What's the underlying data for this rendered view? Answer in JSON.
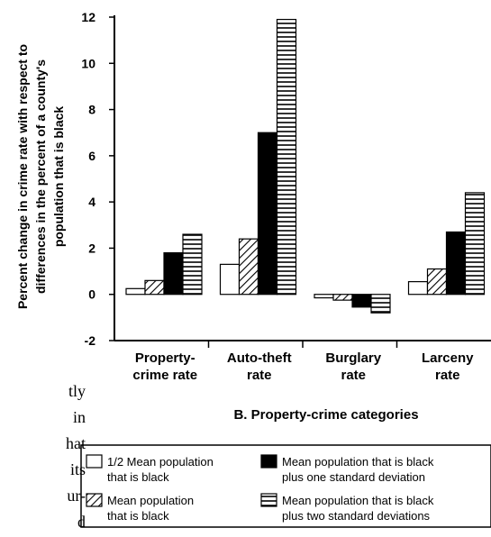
{
  "chart_data": {
    "type": "bar",
    "ylabel_lines": [
      "Percent change in crime rate with respect to",
      "differences in the percent of a county's",
      "population that is black"
    ],
    "xlabel": "B. Property-crime categories",
    "categories": [
      [
        "Property-",
        "crime rate"
      ],
      [
        "Auto-theft",
        "rate"
      ],
      [
        "Burglary",
        "rate"
      ],
      [
        "Larceny",
        "rate"
      ]
    ],
    "ylim": [
      -2,
      12
    ],
    "yticks": [
      "-2",
      "0",
      "2",
      "4",
      "6",
      "8",
      "10",
      "12"
    ],
    "series": [
      {
        "name": "1/2 Mean population that is black",
        "name_lines": [
          "1/2 Mean population",
          "that is black"
        ],
        "pattern": "white",
        "values": [
          0.25,
          1.3,
          -0.15,
          0.55
        ]
      },
      {
        "name": "Mean population that is black",
        "name_lines": [
          "Mean population",
          "that is black"
        ],
        "pattern": "diagonal",
        "values": [
          0.6,
          2.4,
          -0.25,
          1.1
        ]
      },
      {
        "name": "Mean population that is black plus one standard deviation",
        "name_lines": [
          "Mean population that is black",
          "plus one standard deviation"
        ],
        "pattern": "black",
        "values": [
          1.8,
          7.0,
          -0.55,
          2.7
        ]
      },
      {
        "name": "Mean population that is black plus two standard deviations",
        "name_lines": [
          "Mean population that is black",
          "plus two standard deviations"
        ],
        "pattern": "horizontal",
        "values": [
          2.6,
          11.9,
          -0.8,
          4.4
        ]
      }
    ]
  },
  "page_fragments": [
    "tly",
    "in",
    "hat",
    "its",
    "ur-",
    "d"
  ]
}
